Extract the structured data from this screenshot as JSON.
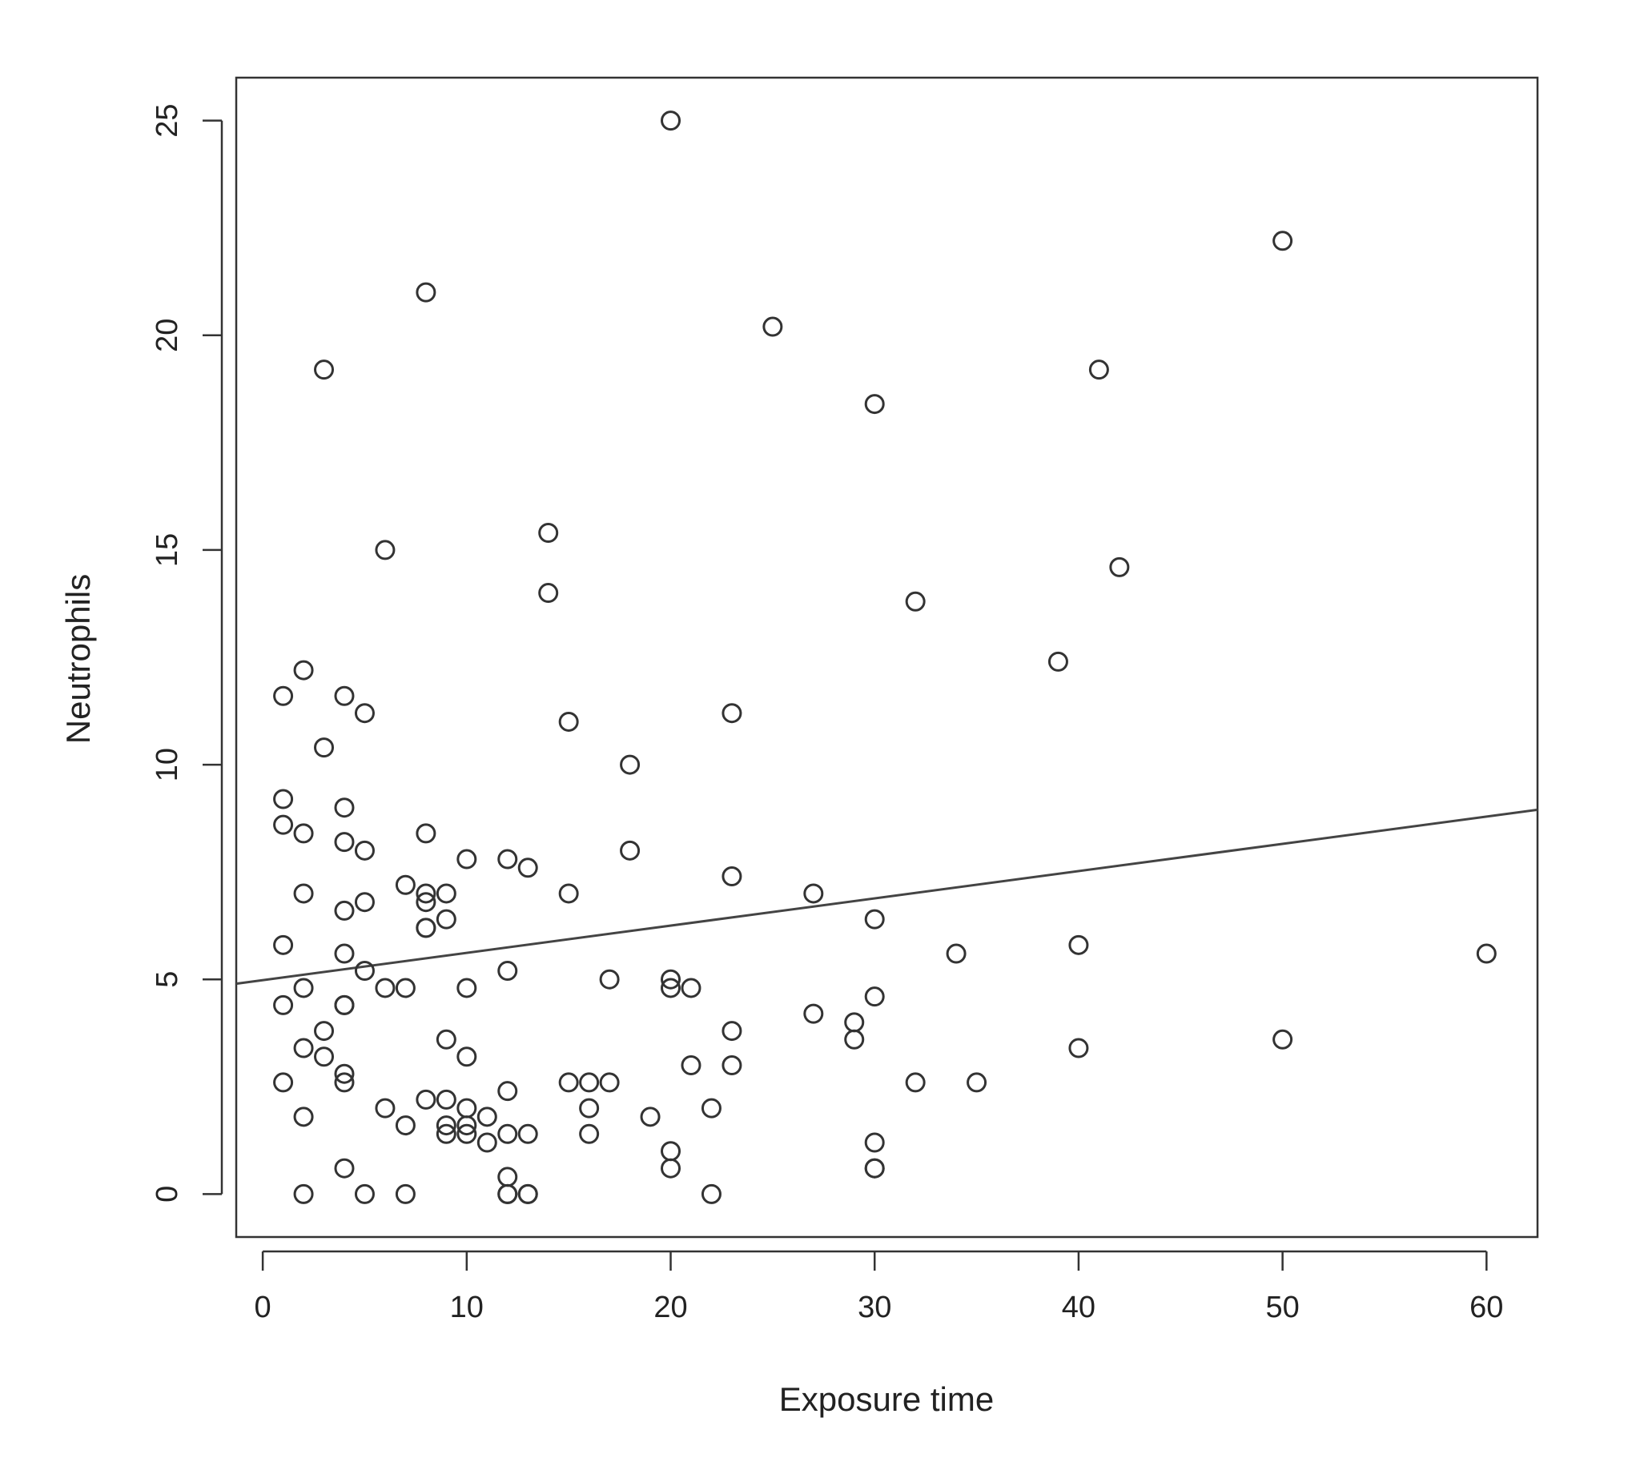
{
  "chart_data": {
    "type": "scatter",
    "title": "",
    "xlabel": "Exposure time",
    "ylabel": "Neutrophils",
    "xlim": [
      -1.3,
      62.5
    ],
    "ylim": [
      -1,
      26
    ],
    "xticks": [
      0,
      10,
      20,
      30,
      40,
      50,
      60
    ],
    "yticks": [
      0,
      5,
      10,
      15,
      20,
      25
    ],
    "grid": false,
    "legend": "none",
    "series": [
      {
        "name": "",
        "points": [
          [
            1,
            11.6
          ],
          [
            1,
            9.2
          ],
          [
            1,
            8.6
          ],
          [
            1,
            5.8
          ],
          [
            1,
            4.4
          ],
          [
            1,
            2.6
          ],
          [
            2,
            12.2
          ],
          [
            2,
            8.4
          ],
          [
            2,
            7.0
          ],
          [
            2,
            4.8
          ],
          [
            2,
            3.4
          ],
          [
            2,
            1.8
          ],
          [
            2,
            0.0
          ],
          [
            3,
            19.2
          ],
          [
            3,
            10.4
          ],
          [
            3,
            3.8
          ],
          [
            3,
            3.2
          ],
          [
            4,
            11.6
          ],
          [
            4,
            9.0
          ],
          [
            4,
            8.2
          ],
          [
            4,
            6.6
          ],
          [
            4,
            5.6
          ],
          [
            4,
            4.4
          ],
          [
            4,
            4.4
          ],
          [
            4,
            2.8
          ],
          [
            4,
            2.6
          ],
          [
            4,
            0.6
          ],
          [
            5,
            11.2
          ],
          [
            5,
            8.0
          ],
          [
            5,
            6.8
          ],
          [
            5,
            5.2
          ],
          [
            5,
            0.0
          ],
          [
            6,
            15.0
          ],
          [
            6,
            4.8
          ],
          [
            6,
            2.0
          ],
          [
            7,
            7.2
          ],
          [
            7,
            4.8
          ],
          [
            7,
            1.6
          ],
          [
            7,
            0.0
          ],
          [
            8,
            21.0
          ],
          [
            8,
            8.4
          ],
          [
            8,
            7.0
          ],
          [
            8,
            6.8
          ],
          [
            8,
            6.2
          ],
          [
            8,
            6.2
          ],
          [
            8,
            2.2
          ],
          [
            9,
            7.0
          ],
          [
            9,
            6.4
          ],
          [
            9,
            3.6
          ],
          [
            9,
            2.2
          ],
          [
            9,
            1.6
          ],
          [
            9,
            1.4
          ],
          [
            10,
            7.8
          ],
          [
            10,
            4.8
          ],
          [
            10,
            3.2
          ],
          [
            10,
            2.0
          ],
          [
            10,
            1.6
          ],
          [
            10,
            1.4
          ],
          [
            11,
            1.8
          ],
          [
            11,
            1.2
          ],
          [
            12,
            7.8
          ],
          [
            12,
            5.2
          ],
          [
            12,
            2.4
          ],
          [
            12,
            1.4
          ],
          [
            12,
            0.4
          ],
          [
            12,
            0.0
          ],
          [
            12,
            0.0
          ],
          [
            13,
            7.6
          ],
          [
            13,
            1.4
          ],
          [
            13,
            0.0
          ],
          [
            13,
            0.0
          ],
          [
            14,
            15.4
          ],
          [
            14,
            14.0
          ],
          [
            15,
            11.0
          ],
          [
            15,
            7.0
          ],
          [
            15,
            2.6
          ],
          [
            16,
            2.6
          ],
          [
            16,
            2.0
          ],
          [
            16,
            1.4
          ],
          [
            17,
            5.0
          ],
          [
            17,
            2.6
          ],
          [
            18,
            10.0
          ],
          [
            18,
            8.0
          ],
          [
            19,
            1.8
          ],
          [
            20,
            25.0
          ],
          [
            20,
            5.0
          ],
          [
            20,
            4.8
          ],
          [
            20,
            1.0
          ],
          [
            20,
            0.6
          ],
          [
            21,
            4.8
          ],
          [
            21,
            3.0
          ],
          [
            22,
            2.0
          ],
          [
            22,
            0.0
          ],
          [
            23,
            11.2
          ],
          [
            23,
            7.4
          ],
          [
            23,
            3.8
          ],
          [
            23,
            3.0
          ],
          [
            25,
            20.2
          ],
          [
            27,
            7.0
          ],
          [
            27,
            4.2
          ],
          [
            29,
            4.0
          ],
          [
            29,
            3.6
          ],
          [
            30,
            18.4
          ],
          [
            30,
            6.4
          ],
          [
            30,
            4.6
          ],
          [
            30,
            1.2
          ],
          [
            30,
            0.6
          ],
          [
            30,
            0.6
          ],
          [
            32,
            13.8
          ],
          [
            32,
            2.6
          ],
          [
            34,
            5.6
          ],
          [
            35,
            2.6
          ],
          [
            39,
            12.4
          ],
          [
            40,
            5.8
          ],
          [
            40,
            3.4
          ],
          [
            41,
            19.2
          ],
          [
            42,
            14.6
          ],
          [
            50,
            22.2
          ],
          [
            50,
            3.6
          ],
          [
            60,
            5.6
          ]
        ]
      }
    ],
    "fit_line": {
      "from": [
        -1.3,
        4.9
      ],
      "to": [
        62.5,
        8.95
      ]
    }
  }
}
